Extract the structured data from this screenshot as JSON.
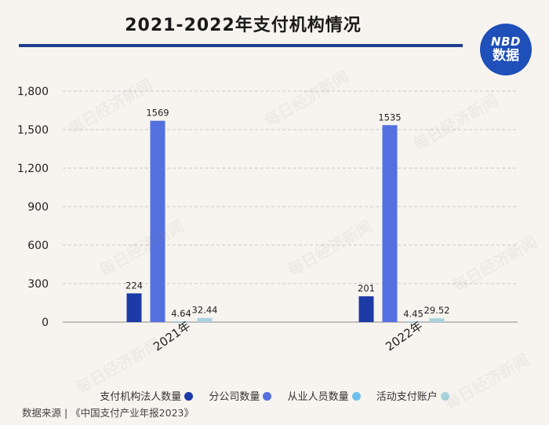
{
  "header": {
    "title": "2021-2022年支付机构情况",
    "logo_line1": "NBD",
    "logo_line2": "数据"
  },
  "chart_data": {
    "type": "bar",
    "categories": [
      "2021年",
      "2022年"
    ],
    "series": [
      {
        "name": "支付机构法人数量",
        "values": [
          224,
          201
        ],
        "labels": [
          "224",
          "201"
        ],
        "color": "#1d3aa6"
      },
      {
        "name": "分公司数量",
        "values": [
          1569,
          1535
        ],
        "labels": [
          "1569",
          "1535"
        ],
        "color": "#5470e0"
      },
      {
        "name": "从业人员数量",
        "values": [
          4.64,
          4.45
        ],
        "labels": [
          "4.64",
          "4.45"
        ],
        "color": "#6ec0ee"
      },
      {
        "name": "活动支付账户",
        "values": [
          32.44,
          29.52
        ],
        "labels": [
          "32.44",
          "29.52"
        ],
        "color": "#a8d3dc"
      }
    ],
    "ylim": [
      0,
      1800
    ],
    "yticks": [
      "0",
      "300",
      "600",
      "900",
      "1,200",
      "1,500",
      "1,800"
    ],
    "ytick_values": [
      0,
      300,
      600,
      900,
      1200,
      1500,
      1800
    ],
    "grid": true,
    "legend": "bottom"
  },
  "footer": {
    "source": "数据来源 | 《中国支付产业年报2023》"
  },
  "watermark_text": "每日经济新闻"
}
